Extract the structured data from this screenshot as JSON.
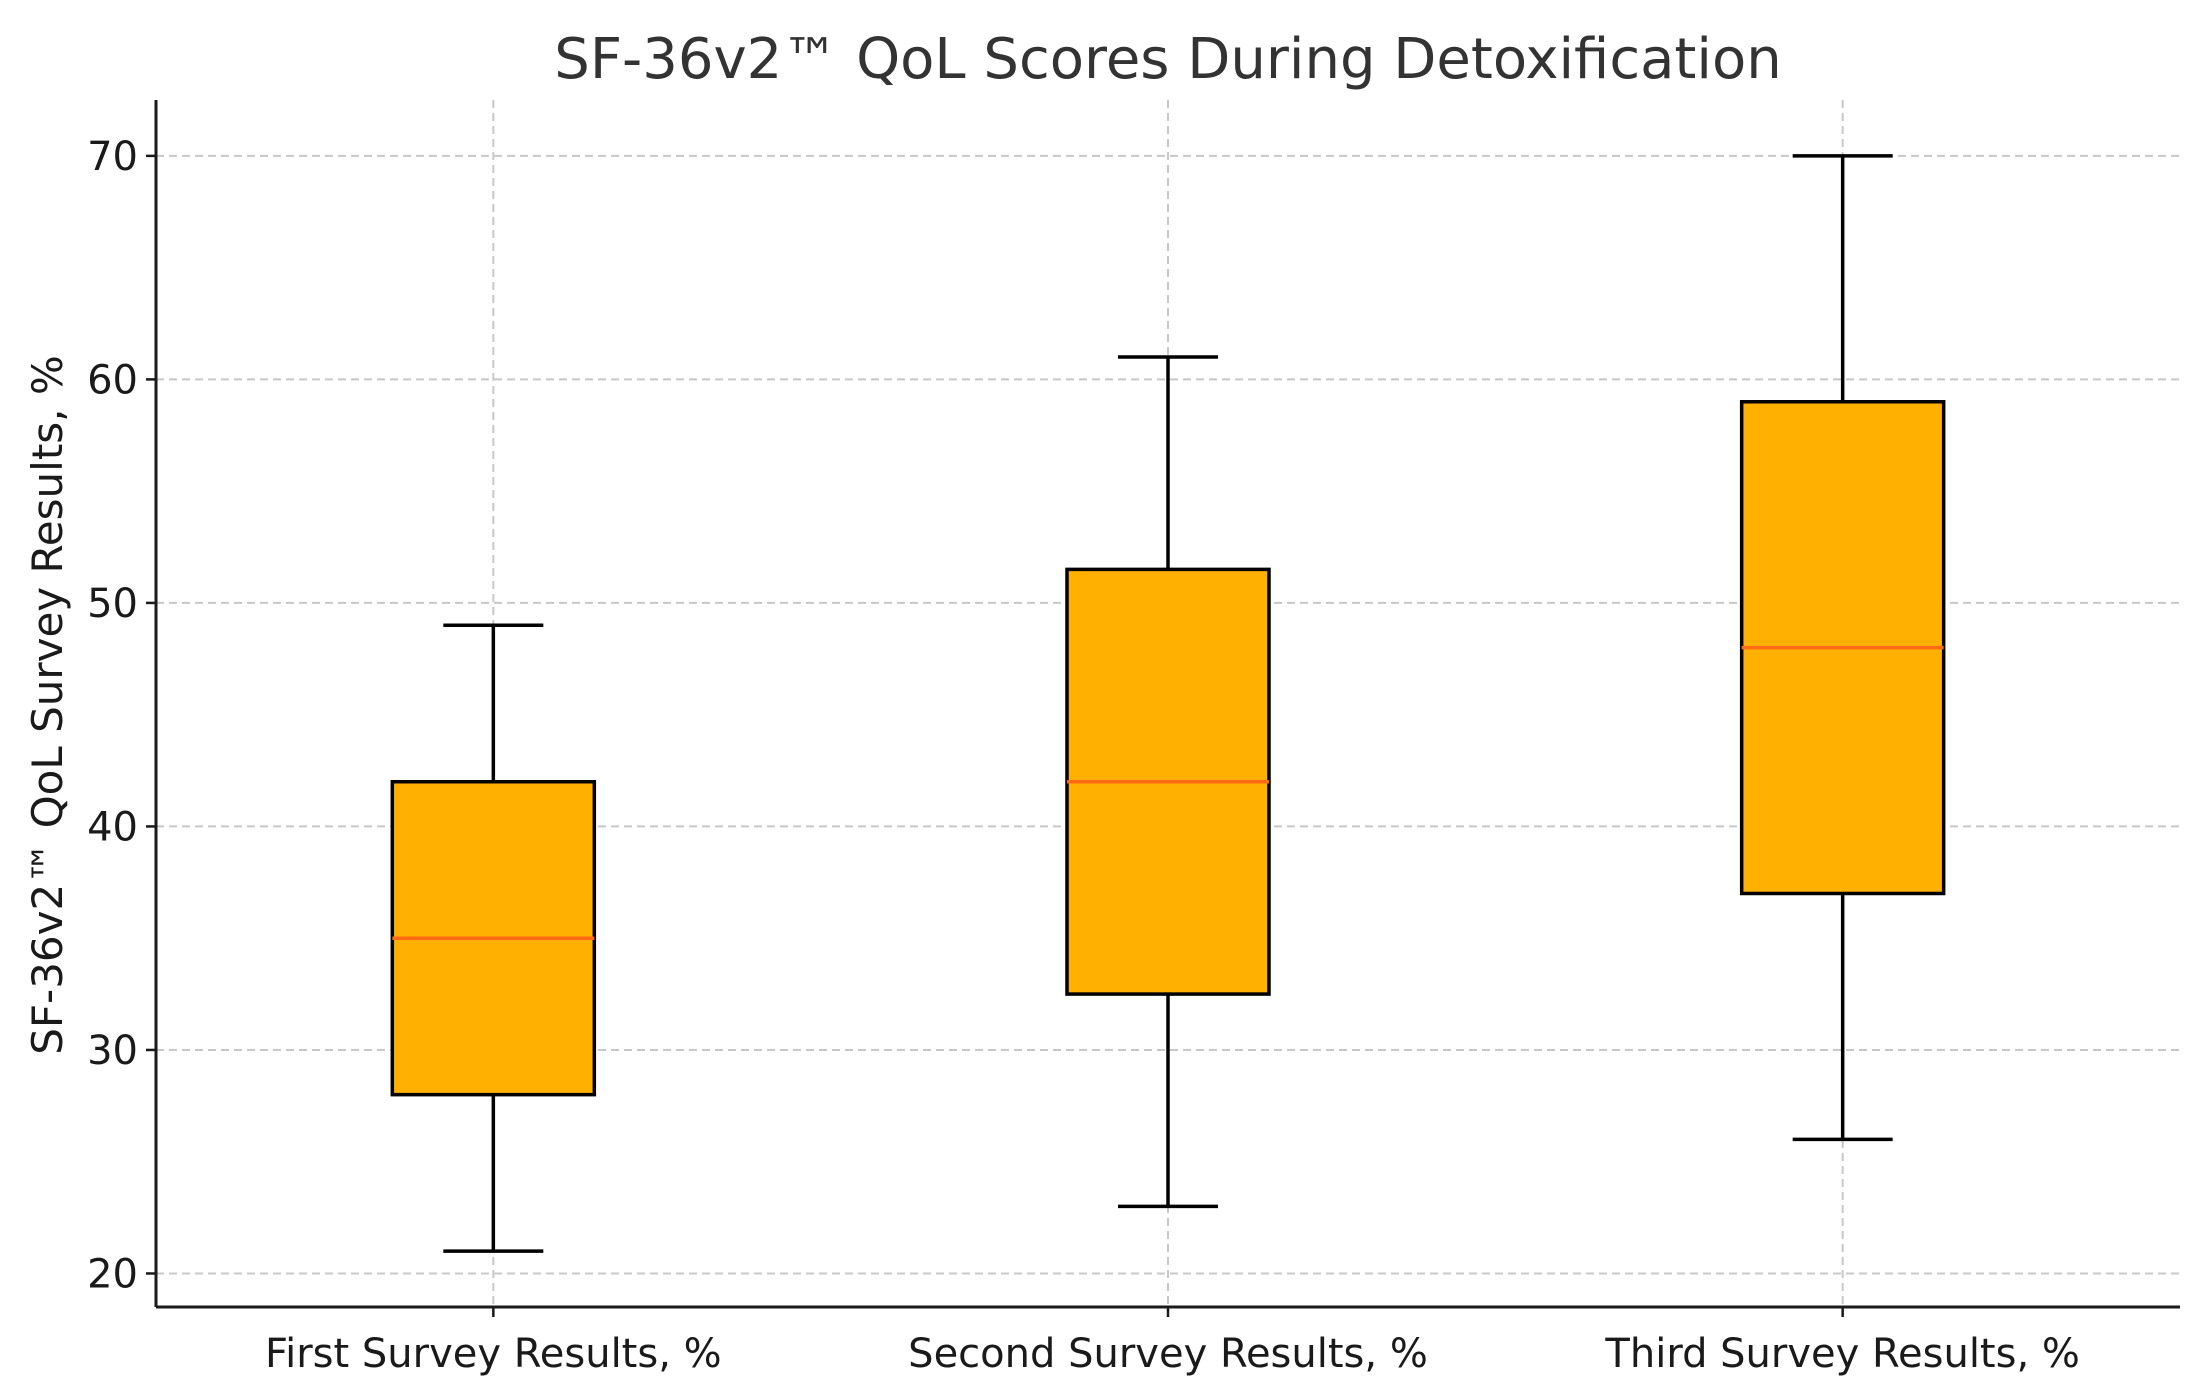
{
  "chart_data": {
    "type": "boxplot",
    "title": "SF-36v2™ QoL Scores During Detoxification",
    "xlabel": "",
    "ylabel": "SF-36v2™ QoL Survey Results, %",
    "ylim": [
      18.5,
      72.5
    ],
    "yticks": [
      20,
      30,
      40,
      50,
      60,
      70
    ],
    "grid": true,
    "categories": [
      "First Survey Results, %",
      "Second Survey Results, %",
      "Third Survey Results, %"
    ],
    "boxes": [
      {
        "category": "First Survey Results, %",
        "whisker_low": 21,
        "q1": 28,
        "median": 35,
        "q3": 42,
        "whisker_high": 49
      },
      {
        "category": "Second Survey Results, %",
        "whisker_low": 23,
        "q1": 32.5,
        "median": 42,
        "q3": 51.5,
        "whisker_high": 61
      },
      {
        "category": "Third Survey Results, %",
        "whisker_low": 26,
        "q1": 37,
        "median": 48,
        "q3": 59,
        "whisker_high": 70
      }
    ],
    "colors": {
      "box_fill": "#FFB000",
      "median": "#FF6A13"
    }
  }
}
